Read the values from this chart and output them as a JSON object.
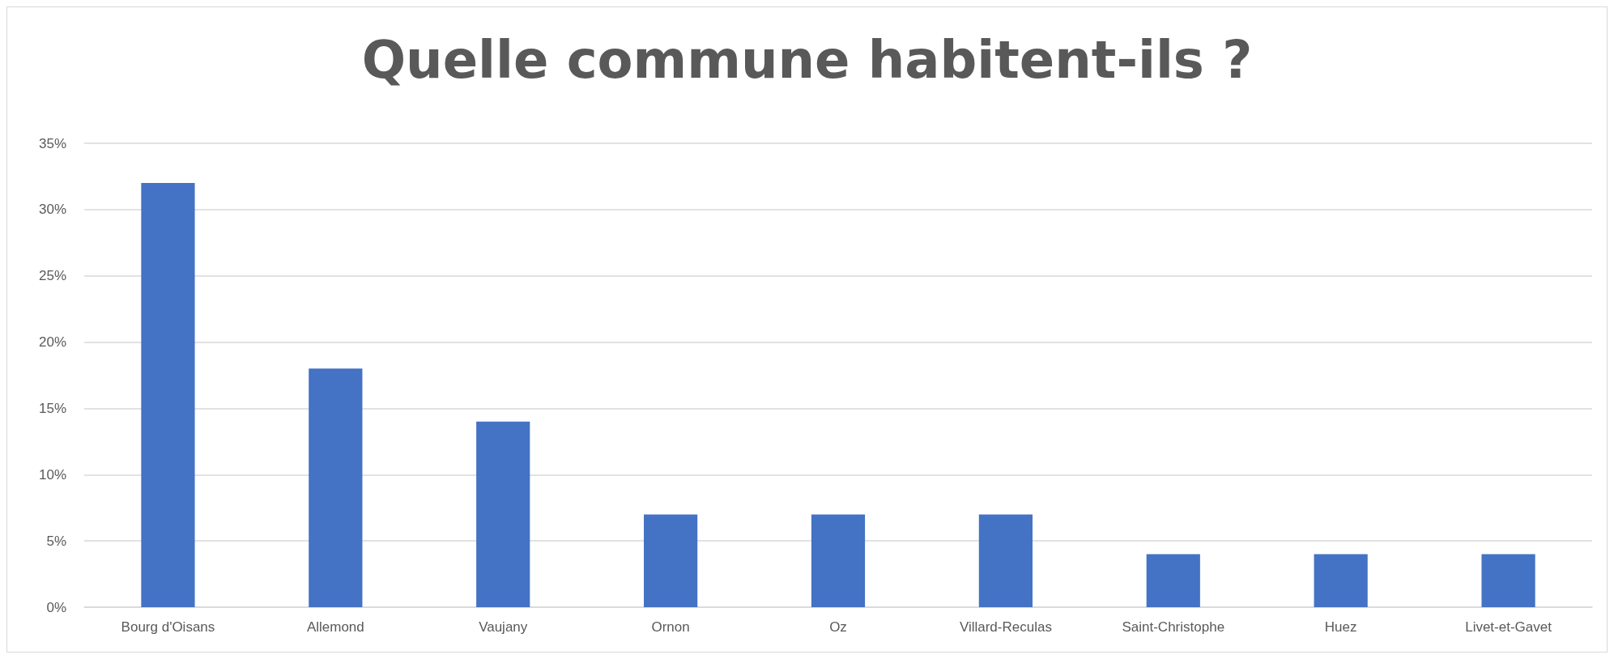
{
  "chart_data": {
    "type": "bar",
    "title": "Quelle commune habitent-ils ?",
    "categories": [
      "Bourg d'Oisans",
      "Allemond",
      "Vaujany",
      "Ornon",
      "Oz",
      "Villard-Reculas",
      "Saint-Christophe",
      "Huez",
      "Livet-et-Gavet"
    ],
    "values": [
      32,
      18,
      14,
      7,
      7,
      7,
      4,
      4,
      4
    ],
    "color": "#4472c4",
    "ylim": [
      0,
      35
    ],
    "yticks": [
      {
        "value": 0,
        "label": "0%"
      },
      {
        "value": 5,
        "label": "5%"
      },
      {
        "value": 10,
        "label": "10%"
      },
      {
        "value": 15,
        "label": "15%"
      },
      {
        "value": 20,
        "label": "20%"
      },
      {
        "value": 25,
        "label": "25%"
      },
      {
        "value": 30,
        "label": "30%"
      },
      {
        "value": 35,
        "label": "35%"
      }
    ],
    "grid": "y"
  }
}
